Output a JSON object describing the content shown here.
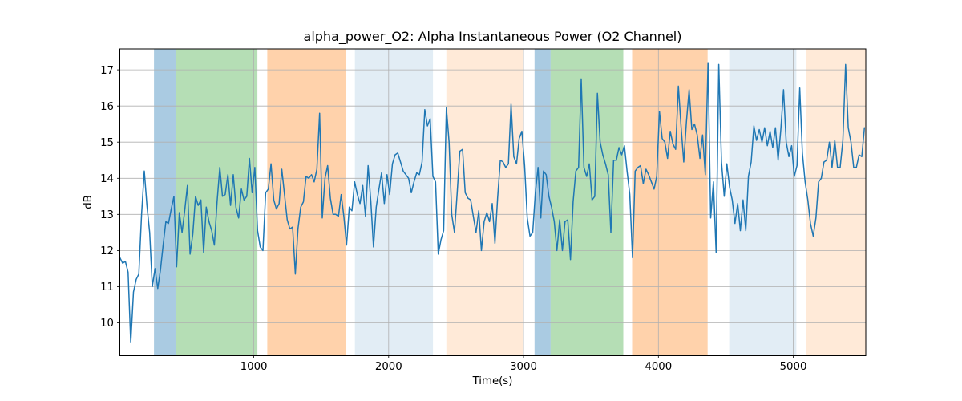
{
  "chart_data": {
    "type": "line",
    "title": "alpha_power_O2: Alpha Instantaneous Power (O2 Channel)",
    "xlabel": "Time(s)",
    "ylabel": "dB",
    "xlim": [
      7,
      5538
    ],
    "ylim": [
      9.09,
      17.58
    ],
    "xticks": [
      1000,
      2000,
      3000,
      4000,
      5000
    ],
    "yticks": [
      10,
      11,
      12,
      13,
      14,
      15,
      16,
      17
    ],
    "grid": true,
    "grid_color": "#b0b0b0",
    "axis_color": "#000000",
    "line_color": "#1f77b4",
    "line_width": 1.5,
    "series": [
      {
        "name": "alpha_power_O2",
        "x_start": 8,
        "x_step": 20,
        "values": [
          11.8,
          11.65,
          11.7,
          11.4,
          9.45,
          10.85,
          11.2,
          11.35,
          13.0,
          14.2,
          13.25,
          12.5,
          11.0,
          11.5,
          10.95,
          11.45,
          12.15,
          12.8,
          12.75,
          13.15,
          13.5,
          11.55,
          13.05,
          12.5,
          13.1,
          13.8,
          11.9,
          12.45,
          13.5,
          13.25,
          13.4,
          11.95,
          13.2,
          12.8,
          12.55,
          12.15,
          13.35,
          14.3,
          13.5,
          13.55,
          14.1,
          13.25,
          14.1,
          13.2,
          12.9,
          13.7,
          13.4,
          13.5,
          14.55,
          13.6,
          14.3,
          12.55,
          12.1,
          12.0,
          13.6,
          13.7,
          14.4,
          13.4,
          13.15,
          13.3,
          14.25,
          13.55,
          12.85,
          12.6,
          12.65,
          11.35,
          12.6,
          13.2,
          13.35,
          14.05,
          14.0,
          14.1,
          13.9,
          14.25,
          15.8,
          12.9,
          14.0,
          14.35,
          13.45,
          13.0,
          13.0,
          12.95,
          13.55,
          12.95,
          12.15,
          13.2,
          13.1,
          13.9,
          13.55,
          13.3,
          13.8,
          12.95,
          14.35,
          13.35,
          12.1,
          13.2,
          13.7,
          14.15,
          13.3,
          14.1,
          13.55,
          14.4,
          14.65,
          14.7,
          14.45,
          14.2,
          14.1,
          14.0,
          13.6,
          13.9,
          14.15,
          14.1,
          14.45,
          15.9,
          15.45,
          15.65,
          14.05,
          13.9,
          11.9,
          12.3,
          12.55,
          15.95,
          15.0,
          13.0,
          12.5,
          13.6,
          14.75,
          14.8,
          13.6,
          13.45,
          13.4,
          12.95,
          12.5,
          13.1,
          12.0,
          12.8,
          13.05,
          12.8,
          13.3,
          12.2,
          13.45,
          14.5,
          14.45,
          14.3,
          14.4,
          16.05,
          14.6,
          14.4,
          15.1,
          15.3,
          14.35,
          12.9,
          12.4,
          12.5,
          13.6,
          14.3,
          12.9,
          14.2,
          14.1,
          13.5,
          13.2,
          12.8,
          12.0,
          12.85,
          12.0,
          12.8,
          12.85,
          11.75,
          13.35,
          14.2,
          14.3,
          16.75,
          14.3,
          14.05,
          14.4,
          13.4,
          13.5,
          16.35,
          15.0,
          14.65,
          14.4,
          14.1,
          12.5,
          14.5,
          14.5,
          14.85,
          14.65,
          14.9,
          14.2,
          13.55,
          11.8,
          14.2,
          14.3,
          14.35,
          13.85,
          14.25,
          14.1,
          13.9,
          13.7,
          14.05,
          15.85,
          15.1,
          15.0,
          14.55,
          15.3,
          14.95,
          14.8,
          16.55,
          15.45,
          14.45,
          15.55,
          16.45,
          15.35,
          15.5,
          15.2,
          14.55,
          15.2,
          14.1,
          17.2,
          12.9,
          13.9,
          11.95,
          17.15,
          14.45,
          13.5,
          14.4,
          13.75,
          13.4,
          12.75,
          13.3,
          12.55,
          13.4,
          12.55,
          14.05,
          14.45,
          15.45,
          15.05,
          15.35,
          15.0,
          15.4,
          14.9,
          15.3,
          14.85,
          15.4,
          14.5,
          15.35,
          16.45,
          15.0,
          14.6,
          14.9,
          14.05,
          14.35,
          16.5,
          14.7,
          13.9,
          13.4,
          12.75,
          12.4,
          12.9,
          13.9,
          14.0,
          14.45,
          14.5,
          15.0,
          14.3,
          15.05,
          14.3,
          14.3,
          15.05,
          17.15,
          15.4,
          15.0,
          14.3,
          14.3,
          14.65,
          14.6,
          15.4
        ]
      }
    ],
    "bands": [
      {
        "kind": "blue",
        "start": 260,
        "end": 426,
        "color": "rgba(31,119,180,0.38)"
      },
      {
        "kind": "green",
        "start": 426,
        "end": 1027,
        "color": "rgba(44,160,44,0.35)"
      },
      {
        "kind": "orange",
        "start": 1100,
        "end": 1680,
        "color": "rgba(255,127,14,0.35)"
      },
      {
        "kind": "blue-light",
        "start": 1750,
        "end": 2329,
        "color": "rgba(31,119,180,0.13)"
      },
      {
        "kind": "orange-light",
        "start": 2428,
        "end": 3000,
        "color": "rgba(255,127,14,0.16)"
      },
      {
        "kind": "blue",
        "start": 3082,
        "end": 3201,
        "color": "rgba(31,119,180,0.38)"
      },
      {
        "kind": "green",
        "start": 3201,
        "end": 3740,
        "color": "rgba(44,160,44,0.35)"
      },
      {
        "kind": "orange",
        "start": 3805,
        "end": 4365,
        "color": "rgba(255,127,14,0.35)"
      },
      {
        "kind": "blue-light",
        "start": 4525,
        "end": 5023,
        "color": "rgba(31,119,180,0.13)"
      },
      {
        "kind": "orange-light",
        "start": 5097,
        "end": 5538,
        "color": "rgba(255,127,14,0.16)"
      }
    ]
  }
}
